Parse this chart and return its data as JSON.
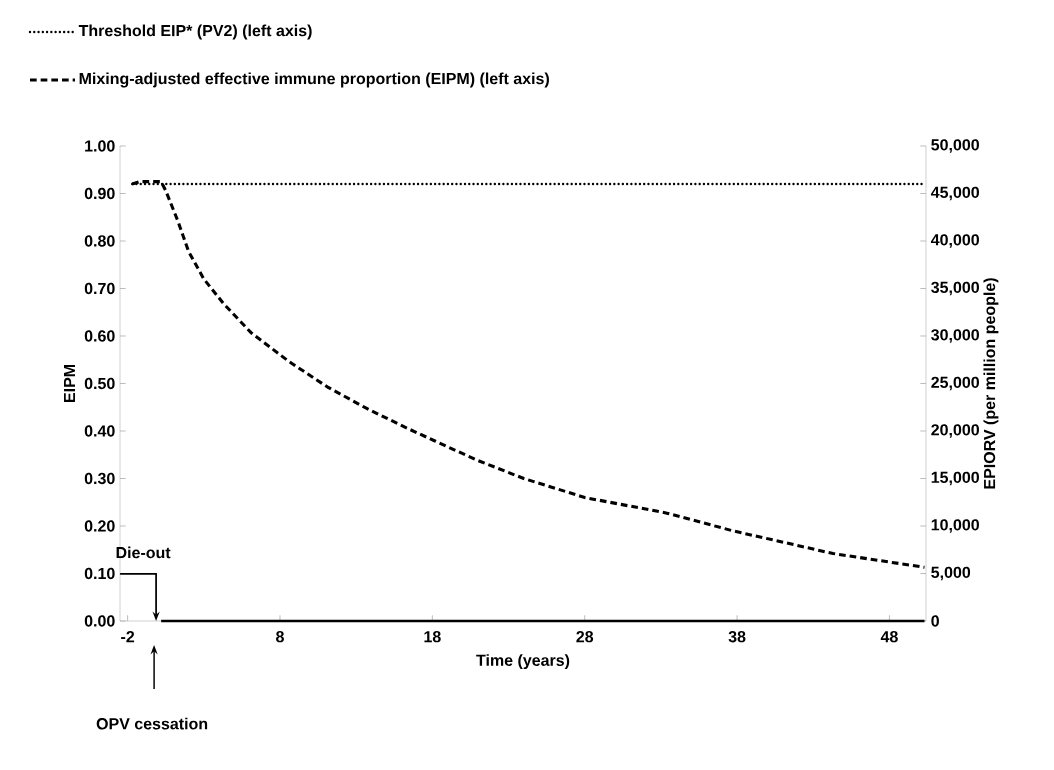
{
  "chart_data": {
    "type": "line",
    "xlabel": "Time (years)",
    "ylabel": "EIPM",
    "y2label": "EPIORV (per million people)",
    "xlim": [
      -2.5,
      50.4
    ],
    "xticks": [
      -2,
      8,
      18,
      28,
      38,
      48
    ],
    "ylim": [
      0,
      1
    ],
    "yticks": [
      {
        "value": 0,
        "label": "0.00"
      },
      {
        "value": 0.1,
        "label": "0.10"
      },
      {
        "value": 0.2,
        "label": "0.20"
      },
      {
        "value": 0.3,
        "label": "0.30"
      },
      {
        "value": 0.4,
        "label": "0.40"
      },
      {
        "value": 0.5,
        "label": "0.50"
      },
      {
        "value": 0.6,
        "label": "0.60"
      },
      {
        "value": 0.7,
        "label": "0.70"
      },
      {
        "value": 0.8,
        "label": "0.80"
      },
      {
        "value": 0.9,
        "label": "0.90"
      },
      {
        "value": 1,
        "label": "1.00"
      }
    ],
    "y2lim": [
      0,
      50000
    ],
    "y2ticks": [
      0,
      {
        "value": 5000,
        "label": "5,000"
      },
      {
        "value": 10000,
        "label": "10,000"
      },
      {
        "value": 15000,
        "label": "15,000"
      },
      {
        "value": 20000,
        "label": "20,000"
      },
      {
        "value": 25000,
        "label": "25,000"
      },
      {
        "value": 30000,
        "label": "30,000"
      },
      {
        "value": 35000,
        "label": "35,000"
      },
      {
        "value": 40000,
        "label": "40,000"
      },
      {
        "value": 45000,
        "label": "45,000"
      },
      {
        "value": 50000,
        "label": "50,000"
      }
    ],
    "legend": "top left",
    "series": [
      {
        "name": "Threshold EIP* (PV2) (left axis)",
        "color": "#000000",
        "line_style": "dotted",
        "x": [
          -1.7,
          50.3
        ],
        "values": [
          0.92,
          0.92
        ]
      },
      {
        "name": "Mixing-adjusted effective immune proportion (EIPM) (left axis)",
        "color": "#000000",
        "line_style": "dashed",
        "x": [
          -1.7,
          -1.2,
          -0.5,
          0.2,
          0.5,
          1.3,
          2.0,
          3.0,
          4.3,
          6.1,
          8.6,
          11.1,
          13.6,
          16.2,
          18.1,
          20.9,
          24,
          28,
          33.4,
          37.7,
          44.3,
          50.3
        ],
        "values": [
          0.92,
          0.925,
          0.925,
          0.925,
          0.906,
          0.842,
          0.778,
          0.72,
          0.668,
          0.607,
          0.546,
          0.493,
          0.449,
          0.408,
          0.38,
          0.339,
          0.3,
          0.26,
          0.227,
          0.19,
          0.142,
          0.113
        ]
      },
      {
        "color": "#000000",
        "line_style": "solid",
        "axis": "y2",
        "x": [
          0.2,
          50.3
        ],
        "values": [
          0,
          0
        ]
      }
    ],
    "annotations": [
      {
        "text": "Die-out",
        "x": 0,
        "y": 0
      },
      "OPV cessation"
    ]
  }
}
